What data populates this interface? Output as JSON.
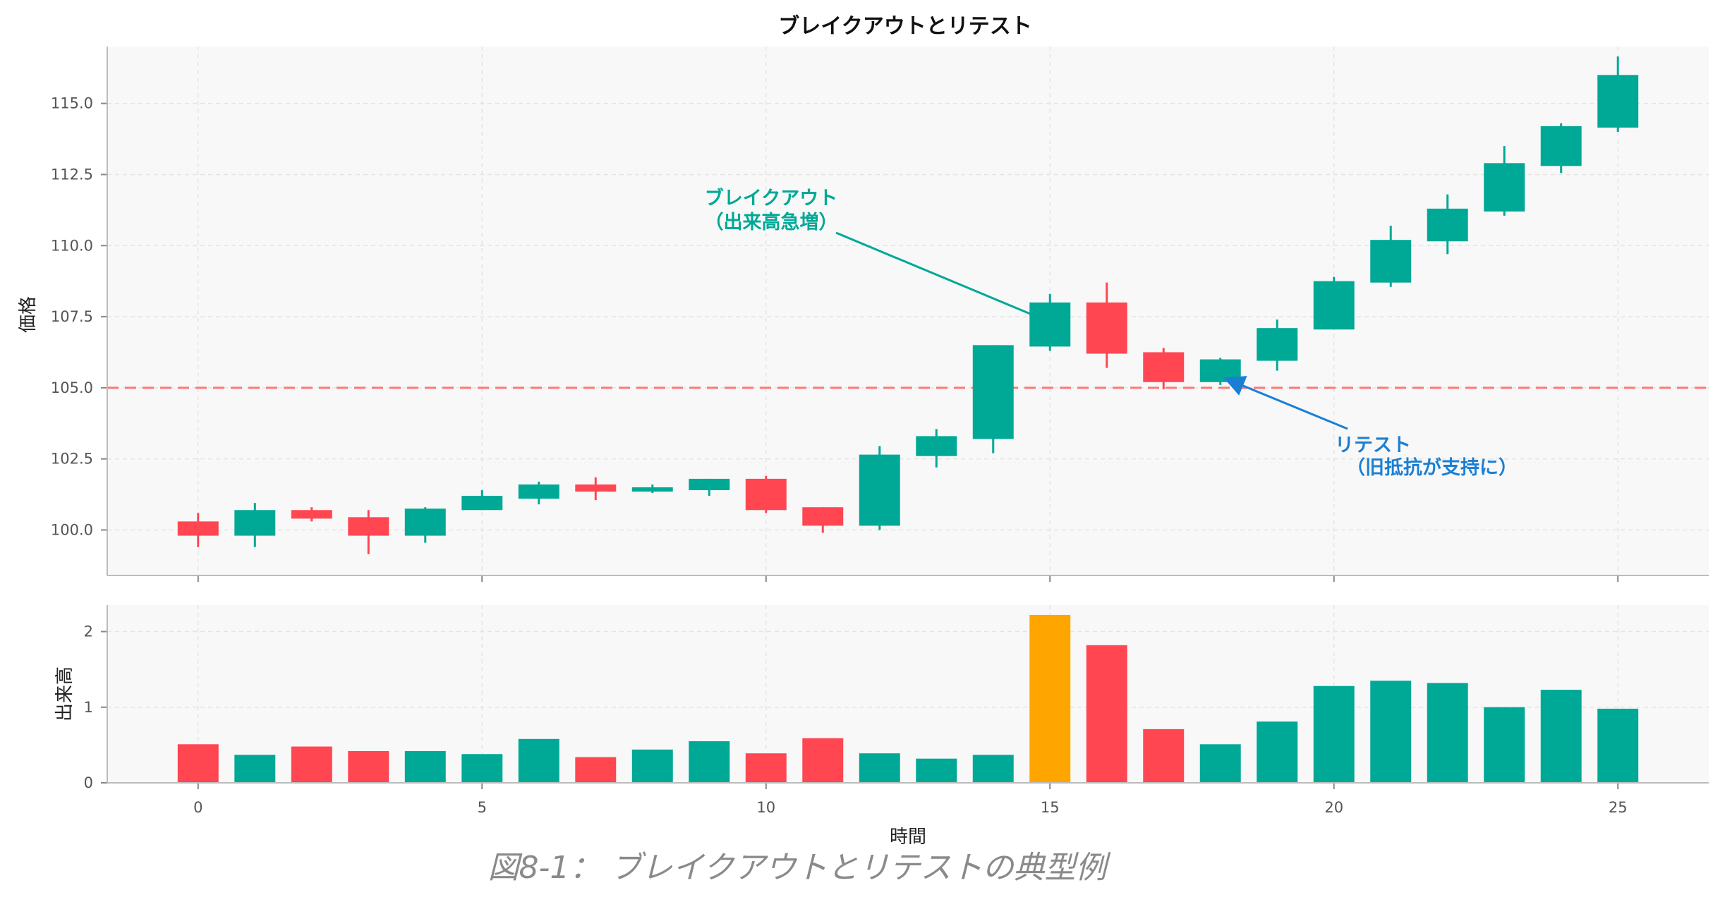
{
  "chart_data": [
    {
      "type": "candlestick",
      "title": "ブレイクアウトとリテスト",
      "ylabel": "価格",
      "ylim": [
        98.4,
        117.0
      ],
      "yticks": [
        "100.0",
        "102.5",
        "105.0",
        "107.5",
        "110.0",
        "112.5",
        "115.0"
      ],
      "xlim": [
        -1.6,
        26.6
      ],
      "grid": true,
      "reference_line": {
        "y": 105.0,
        "color": "#ff6b6b",
        "style": "dashed"
      },
      "candles": [
        {
          "x": 0,
          "open": 100.3,
          "close": 99.8,
          "high": 100.6,
          "low": 99.4
        },
        {
          "x": 1,
          "open": 99.8,
          "close": 100.7,
          "high": 100.95,
          "low": 99.4
        },
        {
          "x": 2,
          "open": 100.7,
          "close": 100.4,
          "high": 100.8,
          "low": 100.3
        },
        {
          "x": 3,
          "open": 100.45,
          "close": 99.8,
          "high": 100.7,
          "low": 99.15
        },
        {
          "x": 4,
          "open": 99.8,
          "close": 100.75,
          "high": 100.8,
          "low": 99.55
        },
        {
          "x": 5,
          "open": 100.7,
          "close": 101.2,
          "high": 101.4,
          "low": 100.7
        },
        {
          "x": 6,
          "open": 101.1,
          "close": 101.6,
          "high": 101.7,
          "low": 100.9
        },
        {
          "x": 7,
          "open": 101.6,
          "close": 101.35,
          "high": 101.85,
          "low": 101.05
        },
        {
          "x": 8,
          "open": 101.35,
          "close": 101.5,
          "high": 101.6,
          "low": 101.3
        },
        {
          "x": 9,
          "open": 101.4,
          "close": 101.8,
          "high": 101.8,
          "low": 101.2
        },
        {
          "x": 10,
          "open": 101.8,
          "close": 100.7,
          "high": 101.9,
          "low": 100.6
        },
        {
          "x": 11,
          "open": 100.8,
          "close": 100.15,
          "high": 100.8,
          "low": 99.9
        },
        {
          "x": 12,
          "open": 100.15,
          "close": 102.65,
          "high": 102.95,
          "low": 100.0
        },
        {
          "x": 13,
          "open": 102.6,
          "close": 103.3,
          "high": 103.55,
          "low": 102.2
        },
        {
          "x": 14,
          "open": 103.2,
          "close": 106.5,
          "high": 106.5,
          "low": 102.7
        },
        {
          "x": 15,
          "open": 106.45,
          "close": 108.0,
          "high": 108.3,
          "low": 106.3
        },
        {
          "x": 16,
          "open": 108.0,
          "close": 106.2,
          "high": 108.7,
          "low": 105.7
        },
        {
          "x": 17,
          "open": 106.25,
          "close": 105.2,
          "high": 106.4,
          "low": 104.95
        },
        {
          "x": 18,
          "open": 105.2,
          "close": 106.0,
          "high": 106.05,
          "low": 105.1
        },
        {
          "x": 19,
          "open": 105.95,
          "close": 107.1,
          "high": 107.4,
          "low": 105.6
        },
        {
          "x": 20,
          "open": 107.05,
          "close": 108.75,
          "high": 108.9,
          "low": 107.05
        },
        {
          "x": 21,
          "open": 108.7,
          "close": 110.2,
          "high": 110.7,
          "low": 108.55
        },
        {
          "x": 22,
          "open": 110.15,
          "close": 111.3,
          "high": 111.8,
          "low": 109.7
        },
        {
          "x": 23,
          "open": 111.2,
          "close": 112.9,
          "high": 113.5,
          "low": 111.05
        },
        {
          "x": 24,
          "open": 112.8,
          "close": 114.2,
          "high": 114.3,
          "low": 112.55
        },
        {
          "x": 25,
          "open": 114.15,
          "close": 116.0,
          "high": 116.65,
          "low": 114.0
        }
      ],
      "up_color": "#00a896",
      "down_color": "#ff4651",
      "annotations": [
        {
          "lines": [
            "ブレイクアウト",
            "（出来高急増）"
          ],
          "point_x": 15,
          "point_y": 107.6,
          "color": "#00a896"
        },
        {
          "lines": [
            "リテスト",
            "（旧抵抗が支持に）"
          ],
          "point_x": 18,
          "point_y": 105.2,
          "color": "#1a7fd4"
        }
      ]
    },
    {
      "type": "bar",
      "ylabel": "出来高",
      "xlabel": "時間",
      "ylim": [
        0,
        2.35
      ],
      "yticks": [
        "0",
        "1",
        "2"
      ],
      "xticks": [
        "0",
        "5",
        "10",
        "15",
        "20",
        "25"
      ],
      "xlim": [
        -1.6,
        26.6
      ],
      "grid": true,
      "x": [
        0,
        1,
        2,
        3,
        4,
        5,
        6,
        7,
        8,
        9,
        10,
        11,
        12,
        13,
        14,
        15,
        16,
        17,
        18,
        19,
        20,
        21,
        22,
        23,
        24,
        25
      ],
      "values": [
        0.51,
        0.37,
        0.48,
        0.42,
        0.42,
        0.38,
        0.58,
        0.34,
        0.44,
        0.55,
        0.39,
        0.59,
        0.39,
        0.32,
        0.37,
        2.22,
        1.82,
        0.71,
        0.51,
        0.81,
        1.28,
        1.35,
        1.32,
        1.0,
        1.23,
        0.98
      ],
      "highlight": {
        "x": 15,
        "color": "#ffa500"
      }
    }
  ],
  "caption": "図8-1： ブレイクアウトとリテストの典型例"
}
